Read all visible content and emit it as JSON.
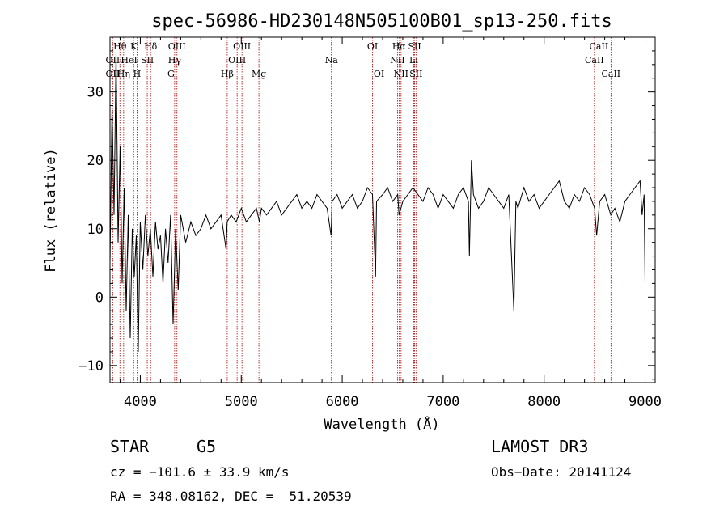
{
  "chart_data": {
    "type": "line",
    "title": "spec-56986-HD230148N505100B01_sp13-250.fits",
    "xlabel": "Wavelength (Å)",
    "ylabel": "Flux (relative)",
    "xlim": [
      3700,
      9100
    ],
    "ylim": [
      -12.5,
      38
    ],
    "x_ticks": [
      4000,
      5000,
      6000,
      7000,
      8000,
      9000
    ],
    "y_ticks": [
      -10,
      0,
      10,
      20,
      30
    ],
    "series": [
      {
        "name": "spectrum",
        "x": [
          3700,
          3720,
          3740,
          3760,
          3780,
          3800,
          3820,
          3840,
          3860,
          3880,
          3900,
          3920,
          3940,
          3960,
          3980,
          4000,
          4025,
          4050,
          4075,
          4100,
          4125,
          4150,
          4175,
          4200,
          4225,
          4250,
          4275,
          4300,
          4325,
          4350,
          4375,
          4400,
          4450,
          4500,
          4550,
          4600,
          4650,
          4700,
          4750,
          4800,
          4850,
          4860,
          4900,
          4950,
          5000,
          5050,
          5100,
          5150,
          5180,
          5200,
          5250,
          5300,
          5350,
          5400,
          5450,
          5500,
          5550,
          5600,
          5650,
          5700,
          5750,
          5800,
          5850,
          5890,
          5900,
          5950,
          6000,
          6050,
          6100,
          6150,
          6200,
          6250,
          6300,
          6330,
          6340,
          6400,
          6450,
          6500,
          6550,
          6563,
          6600,
          6650,
          6700,
          6750,
          6800,
          6850,
          6900,
          6950,
          7000,
          7050,
          7100,
          7150,
          7200,
          7250,
          7260,
          7280,
          7300,
          7350,
          7400,
          7450,
          7500,
          7550,
          7600,
          7650,
          7700,
          7720,
          7740,
          7800,
          7850,
          7900,
          7950,
          8000,
          8050,
          8100,
          8150,
          8200,
          8250,
          8300,
          8350,
          8400,
          8450,
          8500,
          8520,
          8550,
          8600,
          8660,
          8700,
          8750,
          8800,
          8850,
          8900,
          8950,
          8970,
          8990,
          9000
        ],
        "values": [
          5,
          28,
          12,
          36,
          8,
          22,
          2,
          16,
          -2,
          12,
          -6,
          10,
          3,
          9,
          -8,
          11,
          4,
          12,
          6,
          10,
          3,
          11,
          7,
          9,
          2,
          10,
          5,
          12,
          -4,
          10,
          1,
          12,
          8,
          11,
          9,
          10,
          12,
          10,
          11,
          12,
          7,
          11,
          12,
          11,
          13,
          11,
          12,
          13,
          11,
          13,
          12,
          13,
          14,
          12,
          13,
          14,
          15,
          13,
          14,
          13,
          15,
          14,
          13,
          9,
          14,
          15,
          13,
          14,
          15,
          13,
          14,
          16,
          15,
          3,
          14,
          15,
          16,
          14,
          15,
          12,
          14,
          15,
          16,
          15,
          14,
          16,
          15,
          13,
          15,
          14,
          13,
          15,
          16,
          14,
          6,
          20,
          15,
          13,
          14,
          16,
          15,
          14,
          13,
          15,
          -2,
          14,
          13,
          16,
          14,
          15,
          13,
          14,
          15,
          16,
          17,
          14,
          13,
          15,
          14,
          16,
          15,
          13,
          9,
          14,
          15,
          12,
          13,
          11,
          14,
          15,
          16,
          17,
          12,
          15,
          2
        ]
      }
    ],
    "lines": [
      {
        "name": "OII",
        "x": 3727,
        "row": 2
      },
      {
        "name": "Hθ",
        "x": 3798,
        "row": 1
      },
      {
        "name": "OII",
        "x": 3727,
        "row": 3
      },
      {
        "name": "Hη",
        "x": 3835,
        "row": 3
      },
      {
        "name": "K",
        "x": 3934,
        "row": 1
      },
      {
        "name": "HeI",
        "x": 3889,
        "row": 2
      },
      {
        "name": "H",
        "x": 3968,
        "row": 3
      },
      {
        "name": "Hδ",
        "x": 4102,
        "row": 1
      },
      {
        "name": "SII",
        "x": 4069,
        "row": 2
      },
      {
        "name": "OIII",
        "x": 4363,
        "row": 1
      },
      {
        "name": "Hγ",
        "x": 4340,
        "row": 2
      },
      {
        "name": "G",
        "x": 4304,
        "row": 3
      },
      {
        "name": "Hβ",
        "x": 4861,
        "row": 3
      },
      {
        "name": "OIII",
        "x": 5007,
        "row": 1
      },
      {
        "name": "OIII",
        "x": 4959,
        "row": 2
      },
      {
        "name": "Mg",
        "x": 5175,
        "row": 3
      },
      {
        "name": "Na",
        "x": 5893,
        "row": 2
      },
      {
        "name": "OI",
        "x": 6300,
        "row": 1
      },
      {
        "name": "OI",
        "x": 6364,
        "row": 3
      },
      {
        "name": "Hα",
        "x": 6563,
        "row": 1
      },
      {
        "name": "SII",
        "x": 6717,
        "row": 1
      },
      {
        "name": "NII",
        "x": 6548,
        "row": 2
      },
      {
        "name": "Li",
        "x": 6708,
        "row": 2
      },
      {
        "name": "NII",
        "x": 6583,
        "row": 3
      },
      {
        "name": "SII",
        "x": 6731,
        "row": 3
      },
      {
        "name": "CaII",
        "x": 8542,
        "row": 1
      },
      {
        "name": "CaII",
        "x": 8498,
        "row": 2
      },
      {
        "name": "CaII",
        "x": 8662,
        "row": 3
      }
    ]
  },
  "info": {
    "class": "STAR",
    "subclass": "G5",
    "survey": "LAMOST DR3",
    "cz": "cz = −101.6 ± 33.9 km/s",
    "obs_date": "Obs−Date: 20141124",
    "coords": "RA = 348.08162, DEC =  51.20539"
  },
  "colors": {
    "spectrum": "#000000",
    "line_marker": "#b00000",
    "axes": "#000000"
  }
}
